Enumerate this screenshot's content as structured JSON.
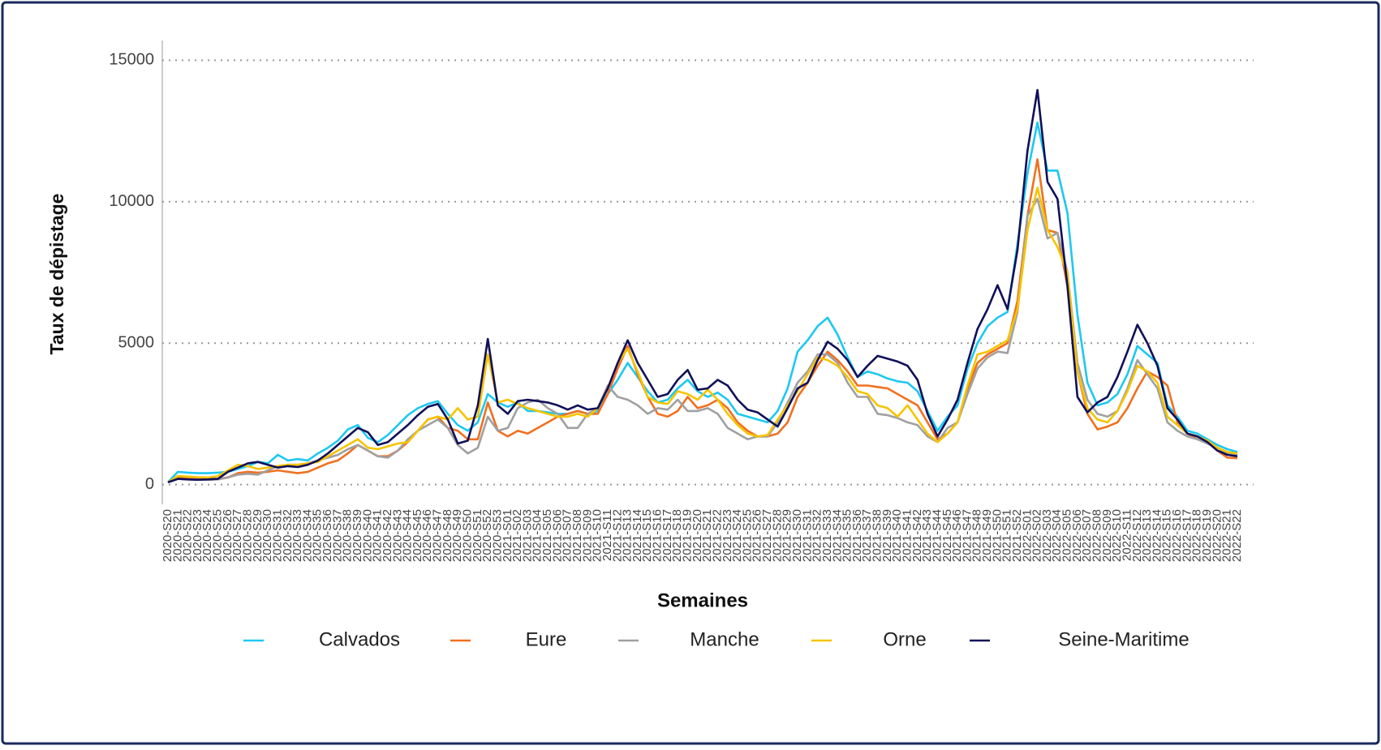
{
  "chart_data": {
    "type": "line",
    "x_label": "Semaines",
    "y_label": "Taux de dépistage",
    "categories": [
      "2020-S20",
      "2020-S21",
      "2020-S22",
      "2020-S23",
      "2020-S24",
      "2020-S25",
      "2020-S26",
      "2020-S27",
      "2020-S28",
      "2020-S29",
      "2020-S30",
      "2020-S31",
      "2020-S32",
      "2020-S33",
      "2020-S34",
      "2020-S35",
      "2020-S36",
      "2020-S37",
      "2020-S38",
      "2020-S39",
      "2020-S40",
      "2020-S41",
      "2020-S42",
      "2020-S43",
      "2020-S44",
      "2020-S45",
      "2020-S46",
      "2020-S47",
      "2020-S48",
      "2020-S49",
      "2020-S50",
      "2020-S51",
      "2020-S52",
      "2020-S53",
      "2021-S01",
      "2021-S02",
      "2021-S03",
      "2021-S04",
      "2021-S05",
      "2021-S06",
      "2021-S07",
      "2021-S08",
      "2021-S09",
      "2021-S10",
      "2021-S11",
      "2021-S12",
      "2021-S13",
      "2021-S14",
      "2021-S15",
      "2021-S16",
      "2021-S17",
      "2021-S18",
      "2021-S19",
      "2021-S20",
      "2021-S21",
      "2021-S22",
      "2021-S23",
      "2021-S24",
      "2021-S25",
      "2021-S26",
      "2021-S27",
      "2021-S28",
      "2021-S29",
      "2021-S30",
      "2021-S31",
      "2021-S32",
      "2021-S33",
      "2021-S34",
      "2021-S35",
      "2021-S36",
      "2021-S37",
      "2021-S38",
      "2021-S39",
      "2021-S40",
      "2021-S41",
      "2021-S42",
      "2021-S43",
      "2021-S44",
      "2021-S45",
      "2021-S46",
      "2021-S47",
      "2021-S48",
      "2021-S49",
      "2021-S50",
      "2021-S51",
      "2021-S52",
      "2022-S01",
      "2022-S02",
      "2022-S03",
      "2022-S04",
      "2022-S05",
      "2022-S06",
      "2022-S07",
      "2022-S08",
      "2022-S09",
      "2022-S10",
      "2022-S11",
      "2022-S12",
      "2022-S13",
      "2022-S14",
      "2022-S15",
      "2022-S16",
      "2022-S17",
      "2022-S18",
      "2022-S19",
      "2022-S20",
      "2022-S21",
      "2022-S22"
    ],
    "series": [
      {
        "name": "Calvados",
        "color": "#1ec8f0",
        "values": [
          80,
          450,
          420,
          400,
          400,
          420,
          450,
          550,
          650,
          800,
          750,
          1050,
          850,
          900,
          850,
          1100,
          1300,
          1550,
          1950,
          2100,
          1650,
          1500,
          1750,
          2100,
          2450,
          2700,
          2850,
          2950,
          2500,
          2100,
          1900,
          2200,
          3200,
          2900,
          2750,
          2900,
          2600,
          2600,
          2550,
          2500,
          2500,
          2600,
          2500,
          2600,
          3200,
          3700,
          4300,
          3800,
          3300,
          2900,
          3000,
          3400,
          3700,
          3300,
          3100,
          3250,
          3000,
          2500,
          2400,
          2300,
          2200,
          2600,
          3400,
          4700,
          5100,
          5600,
          5900,
          5300,
          4500,
          3800,
          4000,
          3900,
          3750,
          3650,
          3600,
          3300,
          2600,
          1900,
          2400,
          2800,
          4100,
          5000,
          5600,
          5900,
          6100,
          8500,
          11000,
          12800,
          11100,
          11100,
          9600,
          6000,
          3600,
          2800,
          2900,
          3200,
          3900,
          4900,
          4600,
          4300,
          2800,
          2400,
          1900,
          1800,
          1600,
          1400,
          1250,
          1150
        ]
      },
      {
        "name": "Eure",
        "color": "#f07020",
        "values": [
          80,
          250,
          230,
          220,
          210,
          200,
          250,
          400,
          450,
          420,
          450,
          500,
          450,
          400,
          450,
          600,
          750,
          850,
          1100,
          1400,
          1200,
          1000,
          1000,
          1200,
          1500,
          1900,
          2300,
          2400,
          2000,
          1900,
          1600,
          1600,
          2900,
          1900,
          1700,
          1900,
          1800,
          2000,
          2200,
          2400,
          2500,
          2600,
          2500,
          2500,
          3200,
          4100,
          4900,
          3900,
          3100,
          2500,
          2400,
          2600,
          3100,
          2700,
          2800,
          3000,
          2700,
          2200,
          1900,
          1700,
          1700,
          1800,
          2200,
          3100,
          3600,
          4200,
          4700,
          4400,
          4000,
          3500,
          3500,
          3450,
          3400,
          3200,
          3000,
          2800,
          2200,
          1600,
          1800,
          2200,
          3400,
          4300,
          4600,
          4800,
          5000,
          6500,
          9500,
          11500,
          9000,
          8900,
          7000,
          4000,
          2500,
          1950,
          2050,
          2200,
          2700,
          3400,
          4000,
          3800,
          3500,
          2200,
          1800,
          1600,
          1500,
          1200,
          950,
          930
        ]
      },
      {
        "name": "Manche",
        "color": "#a0a0a0",
        "values": [
          80,
          200,
          180,
          170,
          170,
          180,
          250,
          350,
          380,
          350,
          500,
          650,
          700,
          700,
          750,
          850,
          950,
          1050,
          1250,
          1400,
          1200,
          1000,
          950,
          1200,
          1600,
          1900,
          2100,
          2300,
          2000,
          1400,
          1100,
          1300,
          2400,
          1900,
          2000,
          2700,
          2900,
          3000,
          2700,
          2500,
          2000,
          2000,
          2500,
          2700,
          3500,
          3100,
          3000,
          2800,
          2500,
          2700,
          2650,
          3000,
          2600,
          2600,
          2700,
          2500,
          2000,
          1800,
          1600,
          1700,
          1700,
          2200,
          2900,
          3600,
          4000,
          4600,
          4600,
          4300,
          3600,
          3100,
          3100,
          2500,
          2450,
          2350,
          2200,
          2100,
          1700,
          1500,
          2000,
          2200,
          3200,
          4100,
          4500,
          4700,
          4650,
          6100,
          9500,
          10100,
          8700,
          8900,
          7500,
          4300,
          3000,
          2500,
          2400,
          2600,
          3400,
          4400,
          3900,
          3400,
          2200,
          1900,
          1700,
          1600,
          1450,
          1300,
          1100,
          1050
        ]
      },
      {
        "name": "Orne",
        "color": "#f5c400",
        "values": [
          80,
          300,
          280,
          260,
          250,
          300,
          500,
          700,
          650,
          550,
          600,
          650,
          700,
          700,
          750,
          800,
          1000,
          1200,
          1400,
          1600,
          1300,
          1250,
          1350,
          1450,
          1500,
          1900,
          2300,
          2400,
          2300,
          2700,
          2300,
          2400,
          4600,
          2900,
          3000,
          2850,
          2700,
          2600,
          2500,
          2400,
          2400,
          2500,
          2400,
          2700,
          3400,
          4300,
          4800,
          4000,
          3100,
          2900,
          2850,
          3300,
          3200,
          3000,
          3350,
          3000,
          2500,
          2100,
          1800,
          1700,
          1750,
          2300,
          2800,
          3300,
          3900,
          4500,
          4400,
          4200,
          3800,
          3300,
          3200,
          2800,
          2700,
          2400,
          2800,
          2300,
          1800,
          1500,
          1800,
          2200,
          3500,
          4600,
          4700,
          4900,
          5100,
          6200,
          9000,
          10500,
          9000,
          8400,
          7500,
          4000,
          2700,
          2300,
          2200,
          2600,
          3300,
          4200,
          4000,
          3600,
          2400,
          2100,
          1800,
          1700,
          1550,
          1300,
          1150,
          1100
        ]
      },
      {
        "name": "Seine-Maritime",
        "color": "#10105a",
        "values": [
          80,
          200,
          180,
          170,
          180,
          200,
          450,
          600,
          750,
          800,
          700,
          600,
          650,
          620,
          700,
          850,
          1100,
          1400,
          1700,
          2000,
          1850,
          1400,
          1500,
          1800,
          2100,
          2450,
          2750,
          2850,
          2300,
          1450,
          1550,
          2800,
          5150,
          2800,
          2500,
          2950,
          3000,
          2950,
          2900,
          2800,
          2650,
          2800,
          2650,
          2700,
          3400,
          4300,
          5100,
          4300,
          3700,
          3100,
          3200,
          3700,
          4050,
          3350,
          3400,
          3700,
          3500,
          3000,
          2650,
          2550,
          2300,
          2050,
          2700,
          3400,
          3600,
          4400,
          5050,
          4800,
          4400,
          3800,
          4200,
          4550,
          4450,
          4350,
          4200,
          3700,
          2500,
          1700,
          2300,
          3000,
          4300,
          5500,
          6200,
          7050,
          6200,
          8300,
          11800,
          13950,
          10700,
          10100,
          7000,
          3100,
          2550,
          2900,
          3100,
          3800,
          4700,
          5650,
          5000,
          4200,
          2700,
          2300,
          1800,
          1700,
          1500,
          1200,
          1050,
          1000
        ]
      }
    ],
    "ylim": [
      -700,
      15700
    ],
    "yticks": [
      0,
      5000,
      10000,
      15000
    ],
    "grid": true,
    "legend": "bottom"
  }
}
